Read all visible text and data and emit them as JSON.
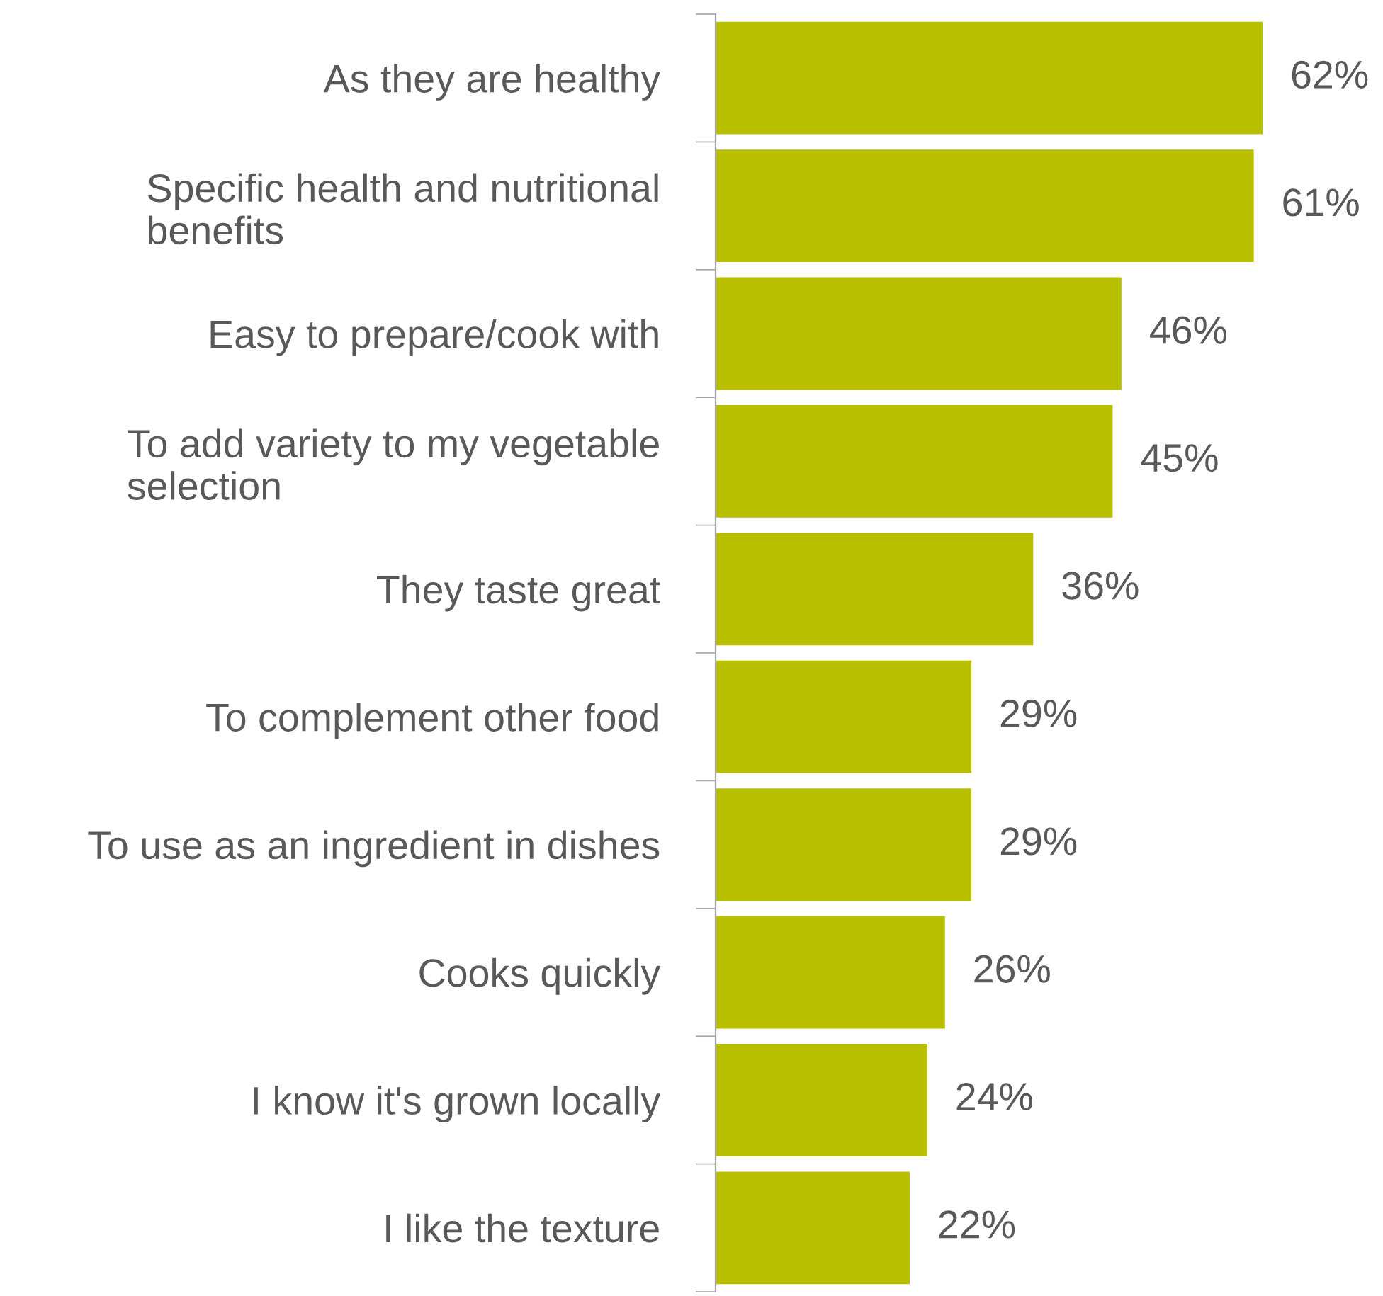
{
  "chart_data": {
    "type": "bar",
    "orientation": "horizontal",
    "categories": [
      "As they are healthy",
      "Specific health and nutritional\nbenefits",
      "Easy to prepare/cook with",
      "To add variety to my vegetable\nselection",
      "They taste great",
      "To complement other food",
      "To use as an ingredient in dishes",
      "Cooks quickly",
      "I know it's grown locally",
      "I like the texture"
    ],
    "values": [
      62,
      61,
      46,
      45,
      36,
      29,
      29,
      26,
      24,
      22
    ],
    "value_labels": [
      "62%",
      "61%",
      "46%",
      "45%",
      "36%",
      "29%",
      "29%",
      "26%",
      "24%",
      "22%"
    ],
    "color": "#b8c000",
    "tick_labels": "y",
    "grid": false,
    "legend": false
  }
}
